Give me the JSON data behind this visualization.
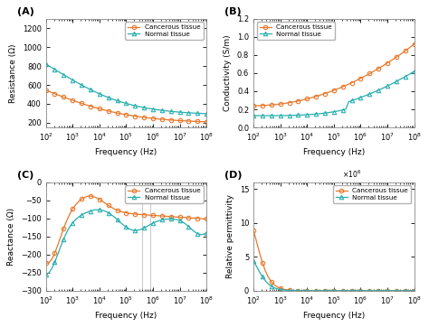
{
  "title_A": "(A)",
  "title_B": "(B)",
  "title_C": "(C)",
  "title_D": "(D)",
  "orange_color": "#E8782A",
  "teal_color": "#2AAFAF",
  "legend_cancerous": "Cancerous tissue",
  "legend_normal": "Normal tissue",
  "ylabel_A": "Resistance (Ω)",
  "ylabel_B": "Conductivity (S/m)",
  "ylabel_C": "Reactance (Ω)",
  "ylabel_D": "Relative permittivity",
  "xlabel": "Frequency (Hz)",
  "bg_color": "#f2f2f2"
}
